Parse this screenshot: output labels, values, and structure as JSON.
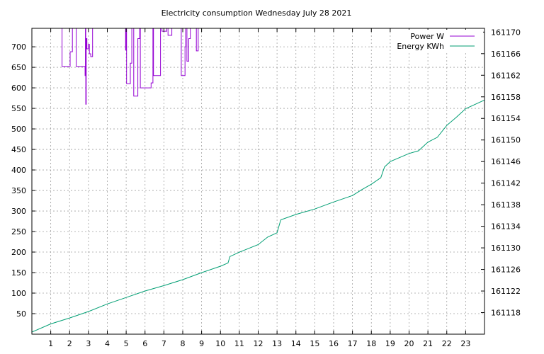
{
  "chart_data": {
    "type": "line",
    "title": "Electricity consumption Wednesday July 28 2021",
    "xlabel": "",
    "ylabel": "",
    "grid": true,
    "legend_position": "top-right",
    "x_range": [
      0,
      24
    ],
    "x_ticks": [
      1,
      2,
      3,
      4,
      5,
      6,
      7,
      8,
      9,
      10,
      11,
      12,
      13,
      14,
      15,
      16,
      17,
      18,
      19,
      20,
      21,
      22,
      23
    ],
    "y_left_range": [
      0,
      745
    ],
    "y_left_ticks": [
      50,
      100,
      150,
      200,
      250,
      300,
      350,
      400,
      450,
      500,
      550,
      600,
      650,
      700
    ],
    "y_right_range": [
      161114,
      161170.7
    ],
    "y_right_ticks": [
      161118,
      161122,
      161126,
      161130,
      161134,
      161138,
      161142,
      161146,
      161150,
      161154,
      161158,
      161162,
      161166,
      161170
    ],
    "series": [
      {
        "name": "Power W",
        "axis": "left",
        "color": "#9400d3",
        "step": true,
        "points": [
          [
            1.5,
            745
          ],
          [
            1.6,
            652
          ],
          [
            2.0,
            652
          ],
          [
            2.03,
            688
          ],
          [
            2.1,
            688
          ],
          [
            2.15,
            745
          ],
          [
            2.3,
            745
          ],
          [
            2.35,
            652
          ],
          [
            2.8,
            652
          ],
          [
            2.82,
            630
          ],
          [
            2.84,
            745
          ],
          [
            2.86,
            560
          ],
          [
            2.88,
            720
          ],
          [
            2.92,
            695
          ],
          [
            3.0,
            706
          ],
          [
            3.05,
            683
          ],
          [
            3.12,
            676
          ],
          [
            3.2,
            676
          ],
          [
            3.22,
            745
          ],
          [
            4.95,
            745
          ],
          [
            4.97,
            692
          ],
          [
            5.0,
            745
          ],
          [
            5.02,
            610
          ],
          [
            5.2,
            610
          ],
          [
            5.22,
            660
          ],
          [
            5.3,
            745
          ],
          [
            5.4,
            580
          ],
          [
            5.6,
            580
          ],
          [
            5.62,
            720
          ],
          [
            5.72,
            745
          ],
          [
            5.75,
            600
          ],
          [
            6.3,
            600
          ],
          [
            6.32,
            612
          ],
          [
            6.4,
            612
          ],
          [
            6.42,
            745
          ],
          [
            6.45,
            630
          ],
          [
            6.8,
            630
          ],
          [
            6.82,
            745
          ],
          [
            6.9,
            738
          ],
          [
            7.1,
            738
          ],
          [
            7.15,
            745
          ],
          [
            7.2,
            745
          ],
          [
            7.22,
            728
          ],
          [
            7.4,
            728
          ],
          [
            7.42,
            745
          ],
          [
            7.9,
            745
          ],
          [
            7.92,
            630
          ],
          [
            8.1,
            630
          ],
          [
            8.12,
            700
          ],
          [
            8.15,
            745
          ],
          [
            8.2,
            745
          ],
          [
            8.22,
            665
          ],
          [
            8.3,
            665
          ],
          [
            8.32,
            720
          ],
          [
            8.4,
            745
          ],
          [
            8.7,
            745
          ],
          [
            8.72,
            690
          ],
          [
            8.8,
            690
          ],
          [
            8.82,
            745
          ]
        ]
      },
      {
        "name": "Energy KWh",
        "axis": "right",
        "color": "#009e73",
        "step": false,
        "points": [
          [
            0,
            161114.4
          ],
          [
            1,
            161115.9
          ],
          [
            2,
            161117.0
          ],
          [
            3,
            161118.2
          ],
          [
            4,
            161119.6
          ],
          [
            5,
            161120.8
          ],
          [
            6,
            161122.0
          ],
          [
            7,
            161123.0
          ],
          [
            8,
            161124.1
          ],
          [
            9,
            161125.4
          ],
          [
            10,
            161126.6
          ],
          [
            10.4,
            161127.2
          ],
          [
            10.5,
            161128.4
          ],
          [
            11,
            161129.2
          ],
          [
            12,
            161130.6
          ],
          [
            12.5,
            161132.0
          ],
          [
            13,
            161132.8
          ],
          [
            13.2,
            161135.2
          ],
          [
            14,
            161136.2
          ],
          [
            15,
            161137.2
          ],
          [
            16,
            161138.5
          ],
          [
            17,
            161139.7
          ],
          [
            17.5,
            161140.8
          ],
          [
            18,
            161141.8
          ],
          [
            18.5,
            161143.0
          ],
          [
            18.7,
            161145.0
          ],
          [
            19,
            161146.0
          ],
          [
            20,
            161147.5
          ],
          [
            20.5,
            161148.0
          ],
          [
            21,
            161149.6
          ],
          [
            21.5,
            161150.5
          ],
          [
            22,
            161152.7
          ],
          [
            22.5,
            161154.2
          ],
          [
            23,
            161155.8
          ],
          [
            24,
            161157.4
          ]
        ]
      }
    ]
  }
}
